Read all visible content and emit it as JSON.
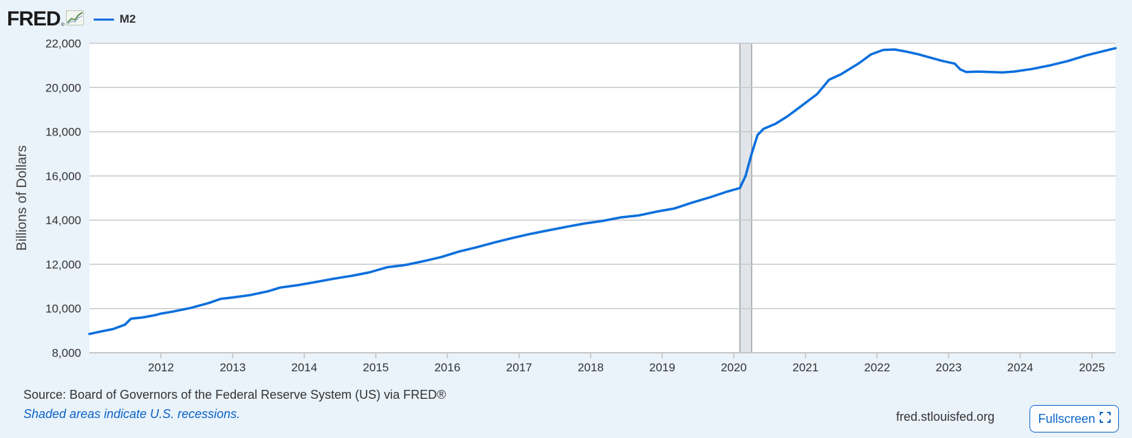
{
  "header": {
    "logo": "FRED",
    "logo_mark": "®",
    "logo_icon": "trend-chart-icon"
  },
  "legend": {
    "label": "M2",
    "color": "#0b6fdc"
  },
  "colors": {
    "line": "#0b6fdc",
    "grid": "#c8c8c8",
    "recession": "#e1e5ea",
    "recession_border": "#a0a0a0",
    "axis": "#c0c0c0",
    "link": "#0b63c8"
  },
  "footer": {
    "source": "Source: Board of Governors of the Federal Reserve System (US) via FRED®",
    "note": "Shaded areas indicate U.S. recessions.",
    "site": "fred.stlouisfed.org",
    "fullscreen_label": "Fullscreen",
    "fullscreen_icon": "expand-icon"
  },
  "chart_data": {
    "type": "line",
    "title": "",
    "ylabel": "Billions of Dollars",
    "xlabel": "",
    "xlim": [
      "2011-01-01",
      "2025-05-01"
    ],
    "ylim": [
      8000,
      22000
    ],
    "y_ticks": [
      8000,
      10000,
      12000,
      14000,
      16000,
      18000,
      20000,
      22000
    ],
    "y_tick_labels": [
      "8,000",
      "10,000",
      "12,000",
      "14,000",
      "16,000",
      "18,000",
      "20,000",
      "22,000"
    ],
    "x_ticks": [
      "2012",
      "2013",
      "2014",
      "2015",
      "2016",
      "2017",
      "2018",
      "2019",
      "2020",
      "2021",
      "2022",
      "2023",
      "2024",
      "2025"
    ],
    "grid": true,
    "legend": "top-left",
    "recessions": [
      {
        "start": "2020-02-01",
        "end": "2020-04-01"
      }
    ],
    "series": [
      {
        "name": "M2",
        "points": [
          [
            "2011-01-01",
            8850
          ],
          [
            "2011-03-01",
            8960
          ],
          [
            "2011-05-01",
            9070
          ],
          [
            "2011-07-01",
            9270
          ],
          [
            "2011-08-01",
            9540
          ],
          [
            "2011-10-01",
            9600
          ],
          [
            "2011-12-01",
            9700
          ],
          [
            "2012-01-01",
            9770
          ],
          [
            "2012-03-01",
            9860
          ],
          [
            "2012-06-01",
            10030
          ],
          [
            "2012-09-01",
            10250
          ],
          [
            "2012-11-01",
            10440
          ],
          [
            "2013-01-01",
            10500
          ],
          [
            "2013-04-01",
            10610
          ],
          [
            "2013-07-01",
            10780
          ],
          [
            "2013-09-01",
            10950
          ],
          [
            "2013-12-01",
            11060
          ],
          [
            "2014-03-01",
            11200
          ],
          [
            "2014-06-01",
            11350
          ],
          [
            "2014-09-01",
            11480
          ],
          [
            "2014-12-01",
            11640
          ],
          [
            "2015-03-01",
            11870
          ],
          [
            "2015-06-01",
            11970
          ],
          [
            "2015-09-01",
            12140
          ],
          [
            "2015-12-01",
            12330
          ],
          [
            "2016-03-01",
            12580
          ],
          [
            "2016-06-01",
            12780
          ],
          [
            "2016-09-01",
            13000
          ],
          [
            "2016-12-01",
            13200
          ],
          [
            "2017-03-01",
            13380
          ],
          [
            "2017-06-01",
            13540
          ],
          [
            "2017-09-01",
            13700
          ],
          [
            "2017-12-01",
            13850
          ],
          [
            "2018-03-01",
            13960
          ],
          [
            "2018-06-01",
            14120
          ],
          [
            "2018-09-01",
            14210
          ],
          [
            "2018-12-01",
            14380
          ],
          [
            "2019-03-01",
            14520
          ],
          [
            "2019-06-01",
            14790
          ],
          [
            "2019-09-01",
            15030
          ],
          [
            "2019-12-01",
            15300
          ],
          [
            "2020-02-01",
            15450
          ],
          [
            "2020-03-01",
            16000
          ],
          [
            "2020-04-01",
            17000
          ],
          [
            "2020-05-01",
            17850
          ],
          [
            "2020-06-01",
            18130
          ],
          [
            "2020-08-01",
            18360
          ],
          [
            "2020-10-01",
            18700
          ],
          [
            "2020-12-01",
            19100
          ],
          [
            "2021-03-01",
            19700
          ],
          [
            "2021-05-01",
            20350
          ],
          [
            "2021-07-01",
            20600
          ],
          [
            "2021-10-01",
            21100
          ],
          [
            "2021-12-01",
            21500
          ],
          [
            "2022-02-01",
            21700
          ],
          [
            "2022-04-01",
            21720
          ],
          [
            "2022-06-01",
            21620
          ],
          [
            "2022-08-01",
            21500
          ],
          [
            "2022-10-01",
            21350
          ],
          [
            "2022-12-01",
            21200
          ],
          [
            "2023-02-01",
            21080
          ],
          [
            "2023-03-01",
            20820
          ],
          [
            "2023-04-01",
            20700
          ],
          [
            "2023-06-01",
            20720
          ],
          [
            "2023-08-01",
            20700
          ],
          [
            "2023-10-01",
            20680
          ],
          [
            "2023-12-01",
            20720
          ],
          [
            "2024-03-01",
            20840
          ],
          [
            "2024-06-01",
            21000
          ],
          [
            "2024-09-01",
            21200
          ],
          [
            "2024-12-01",
            21450
          ],
          [
            "2025-03-01",
            21650
          ],
          [
            "2025-05-01",
            21780
          ]
        ]
      }
    ]
  }
}
